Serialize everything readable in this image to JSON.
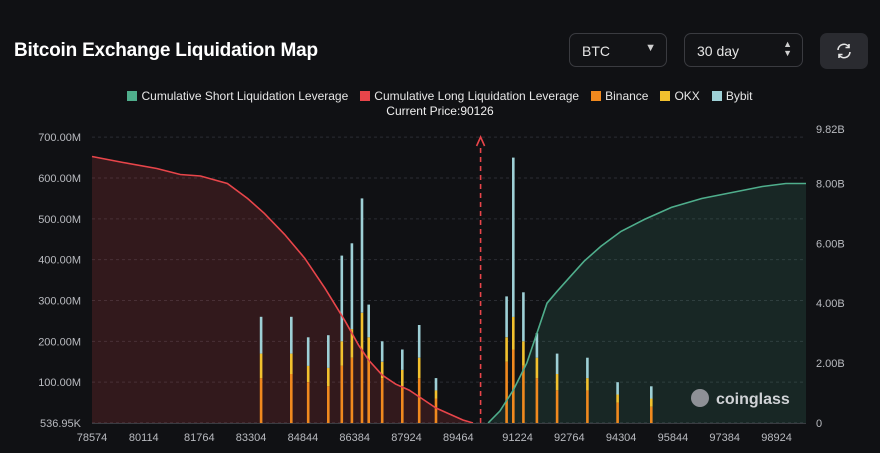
{
  "header": {
    "title": "Bitcoin Exchange Liquidation Map",
    "coin_select": "BTC",
    "period_select": "30 day",
    "refresh_icon": "refresh-icon"
  },
  "colors": {
    "short": "#4fae8c",
    "long": "#e8454a",
    "binance": "#f0891e",
    "okx": "#f2c12e",
    "bybit": "#9ed0d6",
    "background": "#101114"
  },
  "chart_data": {
    "type": "bar+line",
    "current_price_label": "Current Price:90126",
    "current_price": 90126,
    "legend": [
      "Cumulative Short Liquidation Leverage",
      "Cumulative Long Liquidation Leverage",
      "Binance",
      "OKX",
      "Bybit"
    ],
    "left_axis": {
      "ticks": [
        "536.95K",
        "100.00M",
        "200.00M",
        "300.00M",
        "400.00M",
        "500.00M",
        "600.00M",
        "700.00M"
      ],
      "values": [
        0.537,
        100,
        200,
        300,
        400,
        500,
        600,
        700
      ],
      "unit": "M",
      "ylim": [
        0,
        720
      ]
    },
    "right_axis": {
      "ticks": [
        "0",
        "2.00B",
        "4.00B",
        "6.00B",
        "8.00B",
        "9.82B"
      ],
      "values": [
        0,
        2,
        4,
        6,
        8,
        9.82
      ],
      "unit": "B"
    },
    "x_ticks": [
      "78574",
      "80114",
      "81764",
      "83304",
      "84844",
      "86384",
      "87924",
      "89464",
      "91224",
      "92764",
      "94304",
      "95844",
      "97384",
      "98924"
    ],
    "x_range": [
      78574,
      99800
    ],
    "long_cumulative": {
      "unit": "B",
      "x": [
        78574,
        79500,
        80500,
        81200,
        81800,
        82600,
        83200,
        83700,
        84300,
        84900,
        85500,
        86100,
        86500,
        86800,
        87200,
        87600,
        88000,
        88400,
        88800,
        89200,
        89600,
        89900
      ],
      "y": [
        8.9,
        8.7,
        8.5,
        8.3,
        8.25,
        8.0,
        7.5,
        7.0,
        6.3,
        5.5,
        4.5,
        3.4,
        2.6,
        2.1,
        1.6,
        1.3,
        1.1,
        0.8,
        0.5,
        0.3,
        0.1,
        0.0
      ]
    },
    "short_cumulative": {
      "unit": "B",
      "x": [
        90350,
        90700,
        91100,
        91500,
        91800,
        92100,
        92400,
        92800,
        93200,
        93700,
        94300,
        95000,
        95800,
        96700,
        97600,
        98500,
        99200,
        99800
      ],
      "y": [
        0.0,
        0.4,
        1.1,
        2.0,
        3.0,
        4.0,
        4.4,
        4.9,
        5.4,
        5.9,
        6.4,
        6.8,
        7.2,
        7.5,
        7.7,
        7.9,
        8.0,
        8.0
      ]
    },
    "bars": {
      "unit": "M",
      "series": [
        "Binance",
        "OKX",
        "Bybit"
      ],
      "points": [
        {
          "x": 83600,
          "binance": 110,
          "okx": 60,
          "bybit": 90
        },
        {
          "x": 84500,
          "binance": 120,
          "okx": 50,
          "bybit": 90
        },
        {
          "x": 85000,
          "binance": 100,
          "okx": 40,
          "bybit": 70
        },
        {
          "x": 85600,
          "binance": 90,
          "okx": 45,
          "bybit": 80
        },
        {
          "x": 86000,
          "binance": 140,
          "okx": 60,
          "bybit": 210
        },
        {
          "x": 86300,
          "binance": 160,
          "okx": 70,
          "bybit": 210
        },
        {
          "x": 86600,
          "binance": 180,
          "okx": 90,
          "bybit": 280
        },
        {
          "x": 86800,
          "binance": 150,
          "okx": 60,
          "bybit": 80
        },
        {
          "x": 87200,
          "binance": 110,
          "okx": 40,
          "bybit": 50
        },
        {
          "x": 87800,
          "binance": 90,
          "okx": 40,
          "bybit": 50
        },
        {
          "x": 88300,
          "binance": 110,
          "okx": 50,
          "bybit": 80
        },
        {
          "x": 88800,
          "binance": 60,
          "okx": 20,
          "bybit": 30
        },
        {
          "x": 90900,
          "binance": 150,
          "okx": 60,
          "bybit": 100
        },
        {
          "x": 91100,
          "binance": 180,
          "okx": 80,
          "bybit": 390
        },
        {
          "x": 91400,
          "binance": 140,
          "okx": 60,
          "bybit": 120
        },
        {
          "x": 91800,
          "binance": 110,
          "okx": 50,
          "bybit": 60
        },
        {
          "x": 92400,
          "binance": 80,
          "okx": 40,
          "bybit": 50
        },
        {
          "x": 93300,
          "binance": 80,
          "okx": 30,
          "bybit": 50
        },
        {
          "x": 94200,
          "binance": 50,
          "okx": 20,
          "bybit": 30
        },
        {
          "x": 95200,
          "binance": 40,
          "okx": 20,
          "bybit": 30
        }
      ]
    }
  }
}
